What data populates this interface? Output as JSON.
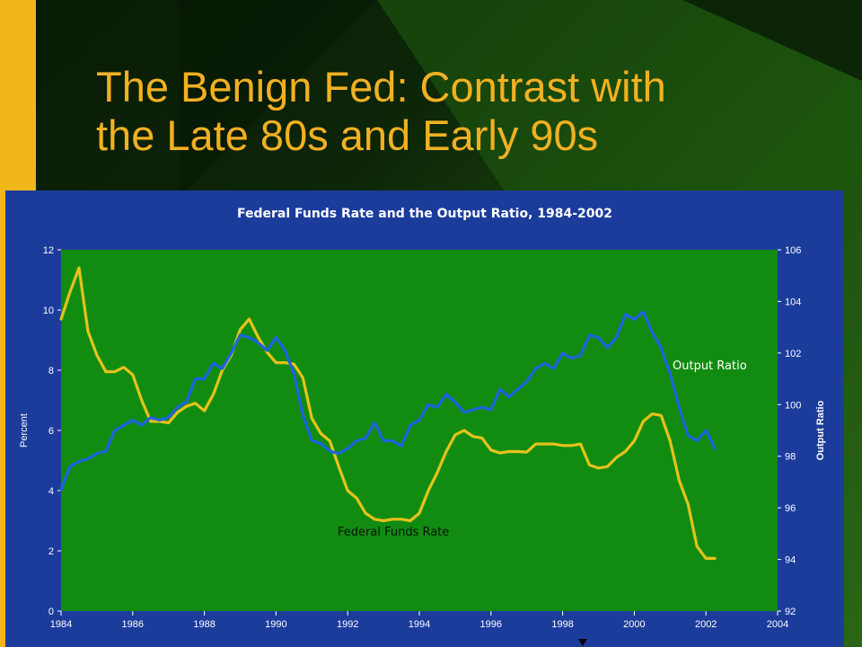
{
  "slide": {
    "title_line1": "The Benign Fed:  Contrast with",
    "title_line2": "the Late 80s and Early 90s",
    "accent_color": "#f0b61a",
    "title_color": "#f2b021"
  },
  "chart_data": {
    "type": "line",
    "title": "Federal Funds Rate and the Output Ratio, 1984-2002",
    "ylabel_left": "Percent",
    "ylabel_right": "Output Ratio",
    "xlim": [
      1984,
      2004
    ],
    "ylim_left": [
      0,
      12
    ],
    "ylim_right": [
      92,
      106
    ],
    "x_ticks": [
      "1984",
      "1986",
      "1988",
      "1990",
      "1992",
      "1994",
      "1996",
      "1998",
      "2000",
      "2002",
      "2004"
    ],
    "y_left_ticks": [
      "0",
      "2",
      "4",
      "6",
      "8",
      "10",
      "12"
    ],
    "y_right_ticks": [
      "92",
      "94",
      "96",
      "98",
      "100",
      "102",
      "104",
      "106"
    ],
    "grid": false,
    "plot_background": "#118c11",
    "series": [
      {
        "name": "Federal Funds Rate",
        "axis": "left",
        "color": "#e6c21a",
        "x": [
          1984.0,
          1984.25,
          1984.5,
          1984.75,
          1985.0,
          1985.25,
          1985.5,
          1985.75,
          1986.0,
          1986.25,
          1986.5,
          1986.75,
          1987.0,
          1987.25,
          1987.5,
          1987.75,
          1988.0,
          1988.25,
          1988.5,
          1988.75,
          1989.0,
          1989.25,
          1989.5,
          1989.75,
          1990.0,
          1990.25,
          1990.5,
          1990.75,
          1991.0,
          1991.25,
          1991.5,
          1991.75,
          1992.0,
          1992.25,
          1992.5,
          1992.75,
          1993.0,
          1993.25,
          1993.5,
          1993.75,
          1994.0,
          1994.25,
          1994.5,
          1994.75,
          1995.0,
          1995.25,
          1995.5,
          1995.75,
          1996.0,
          1996.25,
          1996.5,
          1996.75,
          1997.0,
          1997.25,
          1997.5,
          1997.75,
          1998.0,
          1998.25,
          1998.5,
          1998.75,
          1999.0,
          1999.25,
          1999.5,
          1999.75,
          2000.0,
          2000.25,
          2000.5,
          2000.75,
          2001.0,
          2001.25,
          2001.5,
          2001.75,
          2002.0,
          2002.25
        ],
        "values": [
          9.7,
          10.6,
          11.4,
          9.3,
          8.5,
          7.95,
          7.95,
          8.1,
          7.85,
          7.0,
          6.3,
          6.3,
          6.25,
          6.6,
          6.8,
          6.9,
          6.65,
          7.2,
          8.0,
          8.5,
          9.35,
          9.7,
          9.1,
          8.6,
          8.25,
          8.25,
          8.2,
          7.75,
          6.4,
          5.9,
          5.65,
          4.8,
          4.0,
          3.75,
          3.25,
          3.05,
          3.0,
          3.05,
          3.05,
          3.0,
          3.25,
          4.0,
          4.6,
          5.3,
          5.85,
          6.0,
          5.8,
          5.75,
          5.35,
          5.25,
          5.3,
          5.3,
          5.28,
          5.55,
          5.55,
          5.55,
          5.5,
          5.5,
          5.55,
          4.85,
          4.75,
          4.8,
          5.1,
          5.3,
          5.65,
          6.3,
          6.55,
          6.5,
          5.65,
          4.35,
          3.55,
          2.15,
          1.75,
          1.75
        ]
      },
      {
        "name": "Output Ratio",
        "axis": "right",
        "color": "#1f63e0",
        "x": [
          1984.0,
          1984.25,
          1984.5,
          1984.75,
          1985.0,
          1985.25,
          1985.5,
          1985.75,
          1986.0,
          1986.25,
          1986.5,
          1986.75,
          1987.0,
          1987.25,
          1987.5,
          1987.75,
          1988.0,
          1988.25,
          1988.5,
          1988.75,
          1989.0,
          1989.25,
          1989.5,
          1989.75,
          1990.0,
          1990.25,
          1990.5,
          1990.75,
          1991.0,
          1991.25,
          1991.5,
          1991.75,
          1992.0,
          1992.25,
          1992.5,
          1992.75,
          1993.0,
          1993.25,
          1993.5,
          1993.75,
          1994.0,
          1994.25,
          1994.5,
          1994.75,
          1995.0,
          1995.25,
          1995.5,
          1995.75,
          1996.0,
          1996.25,
          1996.5,
          1996.75,
          1997.0,
          1997.25,
          1997.5,
          1997.75,
          1998.0,
          1998.25,
          1998.5,
          1998.75,
          1999.0,
          1999.25,
          1999.5,
          1999.75,
          2000.0,
          2000.25,
          2000.5,
          2000.75,
          2001.0,
          2001.25,
          2001.5,
          2001.75,
          2002.0,
          2002.25
        ],
        "values": [
          96.7,
          97.6,
          97.8,
          97.9,
          98.1,
          98.2,
          99.0,
          99.2,
          99.4,
          99.2,
          99.5,
          99.4,
          99.5,
          99.9,
          100.1,
          101.0,
          101.0,
          101.6,
          101.4,
          102.0,
          102.7,
          102.6,
          102.4,
          102.1,
          102.6,
          102.1,
          101.2,
          99.6,
          98.6,
          98.5,
          98.2,
          98.1,
          98.3,
          98.6,
          98.7,
          99.3,
          98.6,
          98.6,
          98.4,
          99.2,
          99.4,
          100.0,
          99.9,
          100.4,
          100.1,
          99.7,
          99.8,
          99.9,
          99.8,
          100.6,
          100.3,
          100.6,
          100.9,
          101.4,
          101.6,
          101.4,
          102.0,
          101.8,
          101.9,
          102.7,
          102.6,
          102.2,
          102.6,
          103.5,
          103.3,
          103.6,
          102.8,
          102.2,
          101.2,
          99.9,
          98.8,
          98.6,
          99.0,
          98.3
        ]
      }
    ],
    "annotations": [
      {
        "text": "Output Ratio",
        "near": "Output Ratio series, around 2000-2002"
      },
      {
        "text": "Federal Funds Rate",
        "near": "Federal Funds Rate trough, around 1993"
      }
    ]
  }
}
